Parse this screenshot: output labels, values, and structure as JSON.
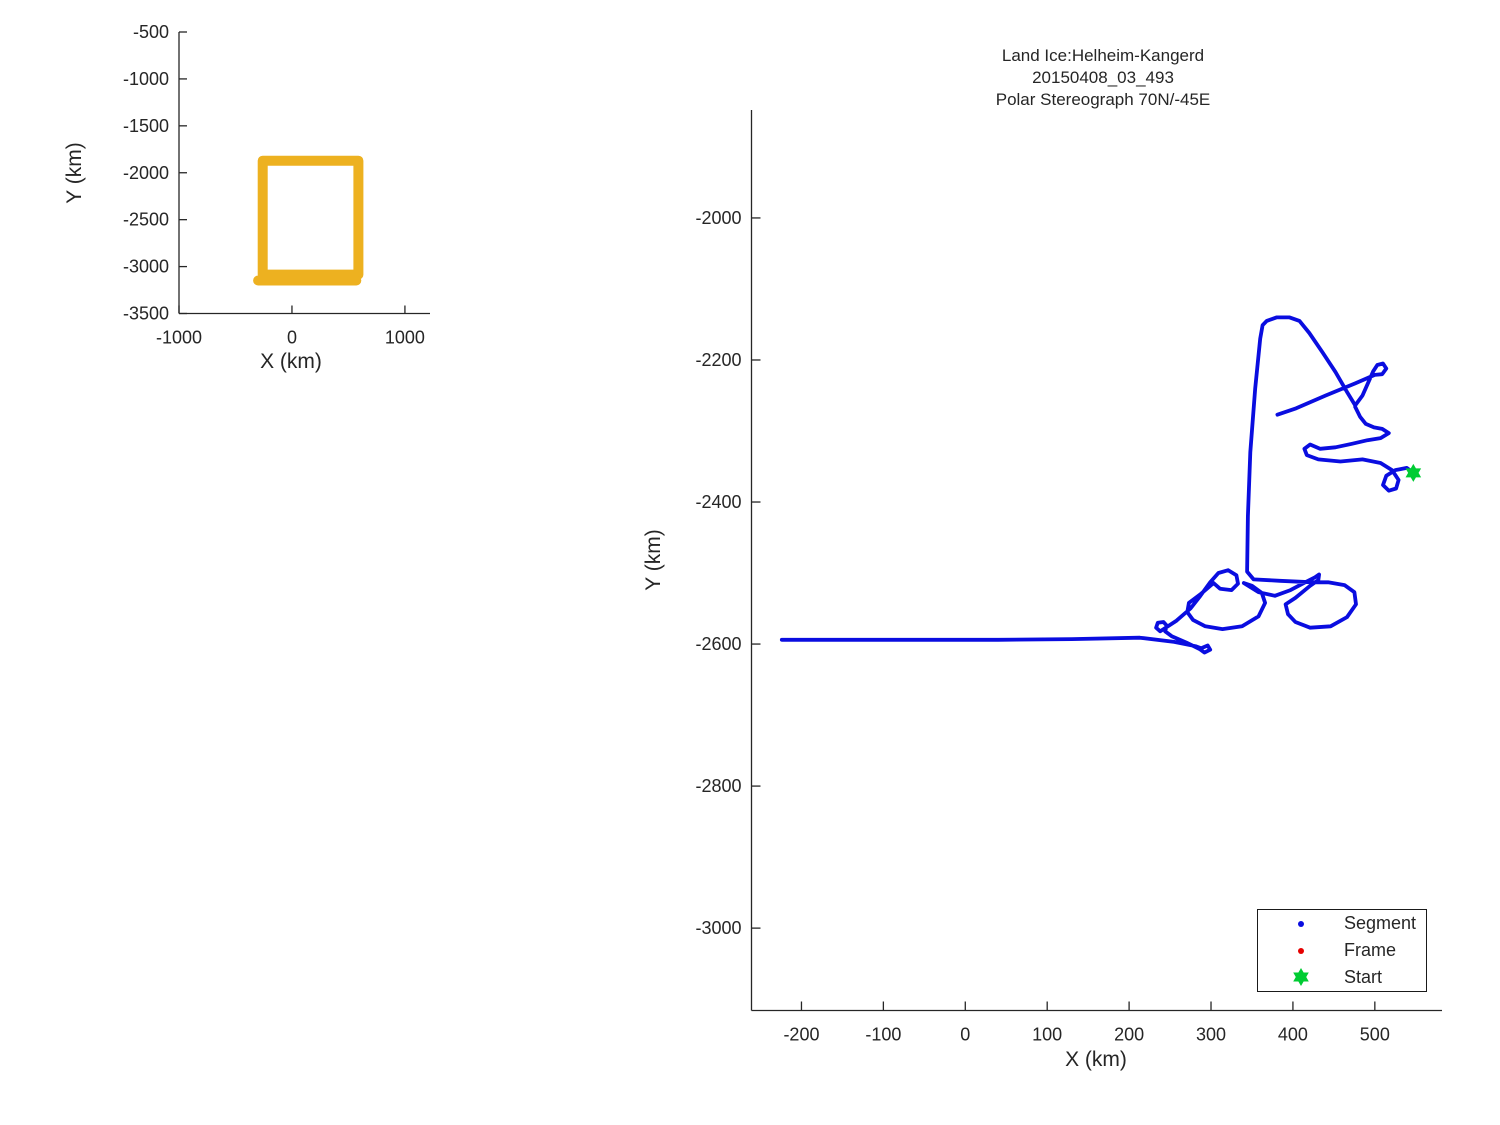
{
  "colors": {
    "segment": "#0a0de0",
    "frame": "#e60000",
    "start": "#00cc33",
    "coverage_box": "#edb120",
    "axis": "#262626",
    "text": "#262626"
  },
  "main_plot": {
    "title_line1": "Land Ice:Helheim-Kangerd",
    "title_line2": "20150408_03_493",
    "title_line3": "Polar Stereograph 70N/-45E",
    "xlabel": "X (km)",
    "ylabel": "Y (km)",
    "legend": {
      "segment_label": "Segment",
      "frame_label": "Frame",
      "start_label": "Start"
    }
  },
  "overview_plot": {
    "xlabel": "X (km)",
    "ylabel": "Y (km)"
  },
  "chart_data": [
    {
      "id": "overview",
      "type": "line",
      "xlabel": "X (km)",
      "ylabel": "Y (km)",
      "xlim": [
        -1000,
        1222
      ],
      "ylim": [
        -3500,
        -500
      ],
      "xticks": [
        -1000,
        0,
        1000
      ],
      "yticks": [
        -500,
        -1000,
        -1500,
        -2000,
        -2500,
        -3000,
        -3500
      ],
      "grid": false,
      "legend_position": "none",
      "series": [
        {
          "name": "coverage-box",
          "color": "#edb120",
          "width": 10,
          "x": [
            -259,
            588,
            588,
            -259,
            -259
          ],
          "y": [
            -1872,
            -1872,
            -3085,
            -3085,
            -1872
          ]
        },
        {
          "name": "coverage-box-second-pass",
          "color": "#edb120",
          "width": 10,
          "x": [
            -300,
            570
          ],
          "y": [
            -3148,
            -3148
          ]
        }
      ]
    },
    {
      "id": "flight-track",
      "type": "line",
      "title": "Land Ice:Helheim-Kangerd 20150408_03_493 Polar Stereograph 70N/-45E",
      "xlabel": "X (km)",
      "ylabel": "Y (km)",
      "xlim": [
        -261,
        582
      ],
      "ylim": [
        -3116,
        -1848
      ],
      "xticks": [
        -200,
        -100,
        0,
        100,
        200,
        300,
        400,
        500
      ],
      "yticks": [
        -2000,
        -2200,
        -2400,
        -2600,
        -2800,
        -3000
      ],
      "grid": false,
      "legend_position": "lower right",
      "legend": [
        {
          "label": "Segment",
          "color": "#0a0de0",
          "marker": "dot"
        },
        {
          "label": "Frame",
          "color": "#e60000",
          "marker": "dot"
        },
        {
          "label": "Start",
          "color": "#00cc33",
          "marker": "hexagram"
        }
      ],
      "start_point": {
        "x": 547,
        "y": -2359
      },
      "segments": [
        {
          "name": "survey-line-and-loops",
          "points": [
            [
              -224,
              -2594
            ],
            [
              -150,
              -2594
            ],
            [
              -60,
              -2594
            ],
            [
              40,
              -2594
            ],
            [
              130,
              -2593
            ],
            [
              213,
              -2591
            ],
            [
              255,
              -2597
            ],
            [
              281,
              -2603
            ],
            [
              288,
              -2606
            ],
            [
              296,
              -2602
            ],
            [
              299,
              -2608
            ],
            [
              292,
              -2612
            ],
            [
              286,
              -2607
            ],
            [
              270,
              -2598
            ],
            [
              252,
              -2589
            ],
            [
              244,
              -2582
            ],
            [
              246,
              -2574
            ],
            [
              242,
              -2569
            ],
            [
              235,
              -2570
            ],
            [
              233,
              -2577
            ],
            [
              238,
              -2582
            ],
            [
              258,
              -2567
            ],
            [
              275,
              -2550
            ],
            [
              287,
              -2532
            ],
            [
              299,
              -2513
            ],
            [
              309,
              -2500
            ],
            [
              321,
              -2496
            ],
            [
              331,
              -2503
            ],
            [
              333,
              -2515
            ],
            [
              325,
              -2524
            ],
            [
              311,
              -2522
            ],
            [
              303,
              -2514
            ],
            [
              287,
              -2530
            ],
            [
              273,
              -2542
            ],
            [
              271,
              -2555
            ],
            [
              278,
              -2566
            ],
            [
              293,
              -2575
            ],
            [
              314,
              -2579
            ],
            [
              338,
              -2575
            ],
            [
              358,
              -2561
            ],
            [
              366,
              -2542
            ],
            [
              362,
              -2528
            ],
            [
              350,
              -2518
            ],
            [
              340,
              -2514
            ],
            [
              358,
              -2527
            ],
            [
              378,
              -2532
            ],
            [
              397,
              -2524
            ],
            [
              415,
              -2513
            ],
            [
              427,
              -2506
            ],
            [
              432,
              -2502
            ],
            [
              431,
              -2510
            ],
            [
              421,
              -2518
            ],
            [
              403,
              -2535
            ],
            [
              391,
              -2544
            ],
            [
              394,
              -2558
            ],
            [
              403,
              -2569
            ],
            [
              421,
              -2577
            ],
            [
              446,
              -2575
            ],
            [
              466,
              -2562
            ],
            [
              477,
              -2544
            ],
            [
              475,
              -2527
            ],
            [
              463,
              -2517
            ],
            [
              443,
              -2513
            ],
            [
              424,
              -2513
            ],
            [
              384,
              -2511
            ],
            [
              352,
              -2509
            ],
            [
              344,
              -2498
            ],
            [
              345,
              -2420
            ],
            [
              348,
              -2330
            ],
            [
              354,
              -2240
            ],
            [
              360,
              -2170
            ],
            [
              363,
              -2151
            ],
            [
              368,
              -2145
            ],
            [
              380,
              -2140
            ],
            [
              396,
              -2140
            ],
            [
              408,
              -2145
            ],
            [
              420,
              -2162
            ],
            [
              436,
              -2189
            ],
            [
              452,
              -2217
            ],
            [
              466,
              -2245
            ],
            [
              476,
              -2264
            ],
            [
              485,
              -2250
            ],
            [
              493,
              -2229
            ],
            [
              498,
              -2216
            ],
            [
              503,
              -2207
            ],
            [
              510,
              -2205
            ],
            [
              514,
              -2212
            ],
            [
              509,
              -2220
            ],
            [
              500,
              -2221
            ],
            [
              476,
              -2233
            ],
            [
              440,
              -2250
            ],
            [
              404,
              -2268
            ],
            [
              381,
              -2277
            ]
          ]
        },
        {
          "name": "southeast-leg-to-start",
          "points": [
            [
              476,
              -2266
            ],
            [
              482,
              -2280
            ],
            [
              489,
              -2290
            ],
            [
              499,
              -2295
            ],
            [
              509,
              -2297
            ],
            [
              517,
              -2303
            ],
            [
              507,
              -2310
            ],
            [
              491,
              -2313
            ],
            [
              472,
              -2318
            ],
            [
              452,
              -2323
            ],
            [
              433,
              -2325
            ],
            [
              421,
              -2319
            ],
            [
              414,
              -2325
            ],
            [
              417,
              -2334
            ],
            [
              431,
              -2340
            ],
            [
              458,
              -2343
            ],
            [
              485,
              -2340
            ],
            [
              507,
              -2345
            ],
            [
              521,
              -2355
            ],
            [
              529,
              -2369
            ],
            [
              526,
              -2381
            ],
            [
              517,
              -2384
            ],
            [
              510,
              -2376
            ],
            [
              514,
              -2363
            ],
            [
              525,
              -2355
            ],
            [
              539,
              -2352
            ],
            [
              547,
              -2359
            ]
          ]
        }
      ]
    }
  ]
}
